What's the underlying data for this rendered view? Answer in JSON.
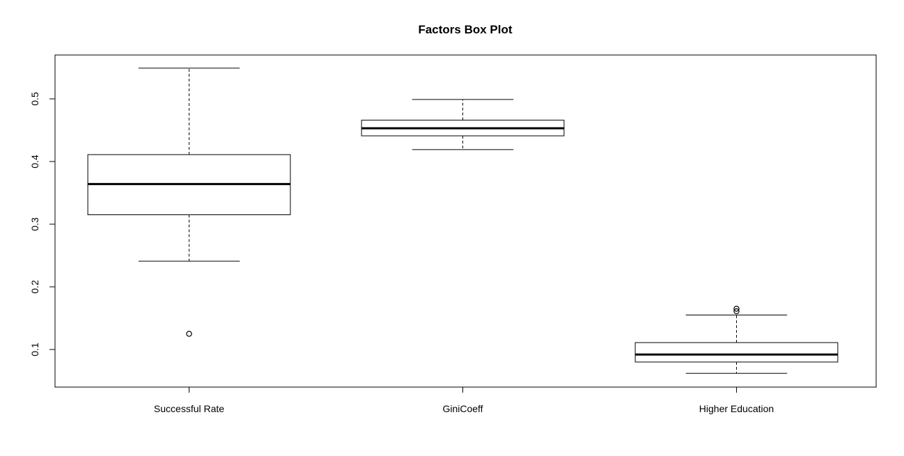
{
  "chart_data": {
    "type": "box",
    "title": "Factors Box Plot",
    "xlabel": "",
    "ylabel": "",
    "ylim": [
      0.04,
      0.57
    ],
    "yticks": [
      "0.1",
      "0.2",
      "0.3",
      "0.4",
      "0.5"
    ],
    "categories": [
      "Successful Rate",
      "GiniCoeff",
      "Higher Education"
    ],
    "boxes": [
      {
        "category": "Successful Rate",
        "whisker_low": 0.241,
        "q1": 0.315,
        "median": 0.364,
        "q3": 0.411,
        "whisker_high": 0.549,
        "outliers": [
          0.125
        ]
      },
      {
        "category": "GiniCoeff",
        "whisker_low": 0.419,
        "q1": 0.441,
        "median": 0.453,
        "q3": 0.466,
        "whisker_high": 0.499,
        "outliers": []
      },
      {
        "category": "Higher Education",
        "whisker_low": 0.062,
        "q1": 0.08,
        "median": 0.092,
        "q3": 0.111,
        "whisker_high": 0.155,
        "outliers": [
          0.161,
          0.165
        ]
      }
    ],
    "grid": false,
    "legend": "none",
    "colors": {
      "stroke": "#000000",
      "fill": "#ffffff"
    }
  }
}
